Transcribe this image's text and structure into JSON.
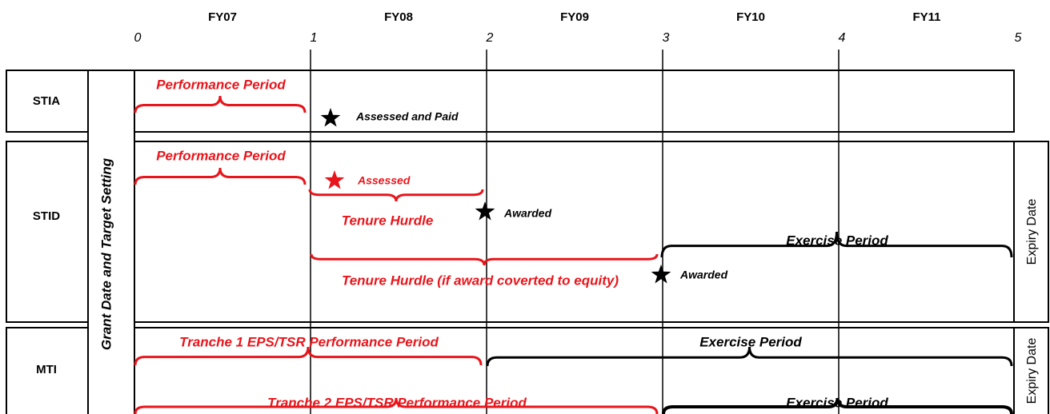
{
  "axis": {
    "fiscal_years": [
      "FY07",
      "FY08",
      "FY09",
      "FY10",
      "FY11"
    ],
    "ticks": [
      0,
      1,
      2,
      3,
      4,
      5
    ]
  },
  "side_label": "Grant Date and Target Setting",
  "rows": [
    {
      "label": "STIA",
      "items": [
        "Performance Period",
        "Assessed and Paid"
      ]
    },
    {
      "label": "STID",
      "items": [
        "Performance Period",
        "Assessed",
        "Tenure Hurdle",
        "Awarded",
        "Exercise Period",
        "Tenure Hurdle (if award coverted to equity)",
        "Awarded"
      ],
      "expiry": "Expiry Date"
    },
    {
      "label": "MTI",
      "items": [
        "Tranche 1 EPS/TSR Performance Period",
        "Exercise Period",
        "Tranche 2 EPS/TSR Performance Period",
        "Exercise Period"
      ],
      "expiry": "Expiry Date"
    }
  ]
}
